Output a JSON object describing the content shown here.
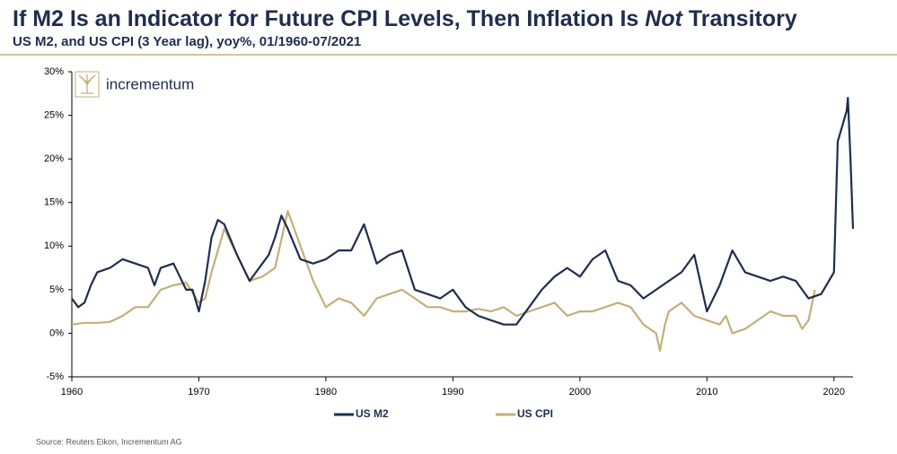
{
  "chart_data": {
    "type": "line",
    "title": [
      "If M2 Is an Indicator for Future CPI Levels, Then Inflation Is ",
      "Not",
      " Transitory"
    ],
    "title_italic": [
      false,
      true,
      false
    ],
    "subtitle": "US M2, and US CPI (3 Year lag), yoy%, 01/1960-07/2021",
    "logo": "incrementum",
    "source": "Source: Reuters Eikon, Incrementum AG",
    "xlim": [
      1960,
      2021.5
    ],
    "xticks": [
      1960,
      1970,
      1980,
      1990,
      2000,
      2010,
      2020
    ],
    "ylim": [
      -5,
      30
    ],
    "yticks": [
      {
        "value": -5,
        "label": "-5%"
      },
      {
        "value": 0,
        "label": "0%"
      },
      {
        "value": 5,
        "label": "5%"
      },
      {
        "value": 10,
        "label": "10%"
      },
      {
        "value": 15,
        "label": "15%"
      },
      {
        "value": 20,
        "label": "20%"
      },
      {
        "value": 25,
        "label": "25%"
      },
      {
        "value": 30,
        "label": "30%"
      }
    ],
    "legend": "bottom",
    "series": [
      {
        "name": "US M2",
        "color": "#1f2d4f",
        "x": [
          1960,
          1960.5,
          1961,
          1961.5,
          1962,
          1963,
          1964,
          1965,
          1966,
          1966.5,
          1967,
          1968,
          1969,
          1969.5,
          1970,
          1970.5,
          1971,
          1971.5,
          1972,
          1973,
          1974,
          1975,
          1975.5,
          1976,
          1976.5,
          1977,
          1978,
          1979,
          1980,
          1981,
          1982,
          1983,
          1984,
          1985,
          1986,
          1987,
          1988,
          1989,
          1990,
          1991,
          1992,
          1993,
          1994,
          1995,
          1996,
          1997,
          1998,
          1999,
          2000,
          2001,
          2002,
          2003,
          2004,
          2005,
          2006,
          2007,
          2008,
          2009,
          2010,
          2011,
          2012,
          2013,
          2014,
          2015,
          2016,
          2017,
          2018,
          2019,
          2020,
          2020.3,
          2020.7,
          2021,
          2021.1,
          2021.3,
          2021.5
        ],
        "values": [
          4,
          3,
          3.5,
          5.5,
          7,
          7.5,
          8.5,
          8,
          7.5,
          5.5,
          7.5,
          8,
          5,
          5,
          2.5,
          6,
          11,
          13,
          12.5,
          9,
          6,
          8,
          9,
          11,
          13.5,
          12,
          8.5,
          8,
          8.5,
          9.5,
          9.5,
          12.5,
          8,
          9,
          9.5,
          5,
          4.5,
          4,
          5,
          3,
          2,
          1.5,
          1,
          1,
          3,
          5,
          6.5,
          7.5,
          6.5,
          8.5,
          9.5,
          6,
          5.5,
          4,
          5,
          6,
          7,
          9,
          2.5,
          5.5,
          9.5,
          7,
          6.5,
          6,
          6.5,
          6,
          4,
          4.5,
          7,
          22,
          24,
          25.5,
          27,
          20,
          12
        ]
      },
      {
        "name": "US CPI",
        "color": "#c2b07a",
        "x": [
          1960,
          1961,
          1962,
          1963,
          1964,
          1965,
          1966,
          1967,
          1968,
          1969,
          1970,
          1970.5,
          1971,
          1972,
          1973,
          1974,
          1975,
          1976,
          1977,
          1977.5,
          1978,
          1979,
          1980,
          1981,
          1982,
          1983,
          1984,
          1985,
          1986,
          1987,
          1988,
          1989,
          1990,
          1991,
          1992,
          1993,
          1994,
          1995,
          1996,
          1997,
          1998,
          1999,
          2000,
          2001,
          2002,
          2003,
          2004,
          2005,
          2006,
          2006.3,
          2006.7,
          2007,
          2008,
          2009,
          2010,
          2011,
          2011.5,
          2012,
          2013,
          2014,
          2015,
          2016,
          2017,
          2017.5,
          2018,
          2018.5
        ],
        "values": [
          1,
          1.2,
          1.2,
          1.3,
          2,
          3,
          3,
          5,
          5.5,
          5.8,
          3.5,
          4,
          7,
          12,
          9,
          6,
          6.5,
          7.5,
          14,
          12,
          10,
          6,
          3,
          4,
          3.5,
          2,
          4,
          4.5,
          5,
          4,
          3,
          3,
          2.5,
          2.5,
          2.8,
          2.5,
          3,
          2,
          2.5,
          3,
          3.5,
          2,
          2.5,
          2.5,
          3,
          3.5,
          3,
          1,
          0,
          -2,
          1,
          2.5,
          3.5,
          2,
          1.5,
          1,
          2,
          0,
          0.5,
          1.5,
          2.5,
          2,
          2,
          0.5,
          1.5,
          5
        ]
      }
    ]
  }
}
